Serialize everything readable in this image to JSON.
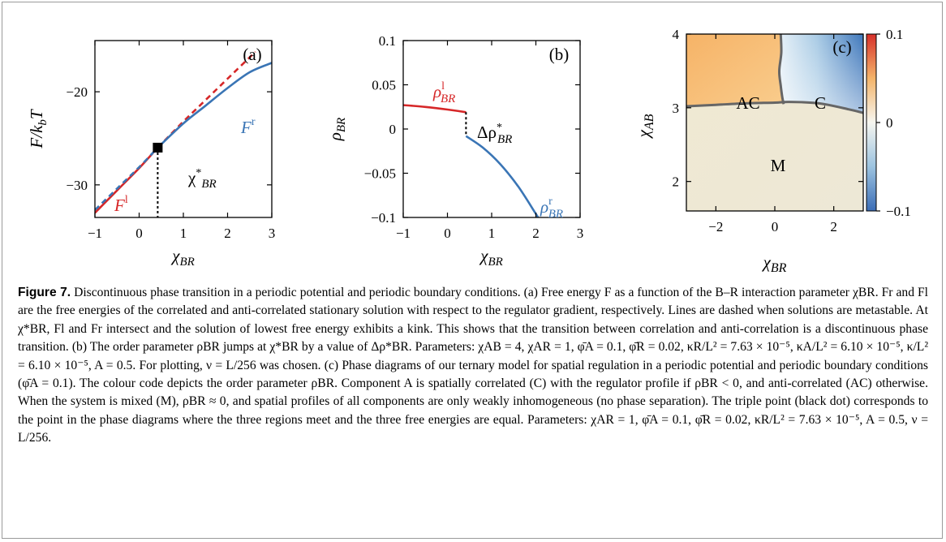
{
  "chart_data": [
    {
      "type": "line",
      "panel": "(a)",
      "xlabel": "χBR",
      "ylabel": "F/k_bT",
      "xlim": [
        -1,
        3
      ],
      "ylim": [
        -33.5,
        -14.5
      ],
      "xticks": [
        "−1",
        "0",
        "1",
        "2",
        "3"
      ],
      "yticks": [
        "−20",
        "−30"
      ],
      "series": [
        {
          "name": "F^l",
          "color": "#d62728",
          "x": [
            -1.0,
            -0.5,
            0.0,
            0.42,
            1.0,
            1.5,
            2.0,
            2.63
          ],
          "y": [
            -33.0,
            -30.6,
            -28.2,
            -26.0,
            -23.2,
            -20.9,
            -18.6,
            -15.7
          ]
        },
        {
          "name": "F^r",
          "color": "#3a75b5",
          "x": [
            -1.0,
            -0.5,
            0.0,
            0.42,
            1.0,
            1.5,
            2.0,
            2.5,
            3.0
          ],
          "y": [
            -32.7,
            -30.4,
            -28.1,
            -26.0,
            -23.4,
            -21.5,
            -19.6,
            -17.9,
            -16.9
          ]
        }
      ],
      "annotations": [
        "χ*BR",
        "(a)",
        "F^l",
        "F^r"
      ],
      "transition_point": {
        "x": 0.42,
        "y": -26.0
      }
    },
    {
      "type": "line",
      "panel": "(b)",
      "xlabel": "χBR",
      "ylabel": "ρBR",
      "xlim": [
        -1,
        3
      ],
      "ylim": [
        -0.1,
        0.1
      ],
      "xticks": [
        "−1",
        "0",
        "1",
        "2",
        "3"
      ],
      "yticks": [
        "0.1",
        "0.05",
        "0",
        "−0.05",
        "−0.1"
      ],
      "series": [
        {
          "name": "ρ^l_BR",
          "color": "#d62728",
          "x": [
            -1.0,
            -0.5,
            0.0,
            0.42
          ],
          "y": [
            0.027,
            0.025,
            0.022,
            0.019
          ]
        },
        {
          "name": "ρ^r_BR",
          "color": "#3a75b5",
          "x": [
            0.42,
            0.8,
            1.2,
            1.6,
            2.0,
            2.05
          ],
          "y": [
            -0.008,
            -0.021,
            -0.04,
            -0.065,
            -0.096,
            -0.1
          ]
        }
      ],
      "annotations": [
        "Δρ*BR",
        "(b)",
        "ρ^l_BR",
        "ρ^r_BR"
      ]
    },
    {
      "type": "heatmap",
      "panel": "(c)",
      "xlabel": "χBR",
      "ylabel": "χAB",
      "xlim": [
        -3,
        3
      ],
      "ylim": [
        1.6,
        4
      ],
      "xticks": [
        "−2",
        "0",
        "2"
      ],
      "yticks": [
        "4",
        "3",
        "2"
      ],
      "colorbar": {
        "min": -0.1,
        "max": 0.1,
        "ticks": [
          "0.1",
          "0",
          "−0.1"
        ],
        "colors": [
          "#3a6fb8",
          "#f7f7f0",
          "#d8332a"
        ]
      },
      "regions": [
        "AC",
        "C",
        "M"
      ],
      "boundaries": {
        "ac_c": {
          "x": [
            0.2,
            0.22,
            0.15,
            0.2,
            0.25,
            0.3
          ],
          "y": [
            4.0,
            3.75,
            3.5,
            3.3,
            3.15,
            3.05
          ]
        },
        "lower": {
          "x": [
            -3.0,
            -2.0,
            -1.0,
            0.0,
            0.5,
            1.5,
            2.5,
            3.0
          ],
          "y": [
            3.02,
            3.04,
            3.06,
            3.07,
            3.08,
            3.06,
            2.98,
            2.93
          ]
        }
      },
      "annotations": [
        "(c)"
      ]
    }
  ],
  "caption": {
    "figure_label": "Figure 7.",
    "text": " Discontinuous phase transition in a periodic potential and periodic boundary conditions. (a) Free energy F as a function of the B–R interaction parameter χBR. Fr and Fl are the free energies of the correlated and anti-correlated stationary solution with respect to the regulator gradient, respectively. Lines are dashed when solutions are metastable. At χ*BR, Fl and Fr intersect and the solution of lowest free energy exhibits a kink. This shows that the transition between correlation and anti-correlation is a discontinuous phase transition. (b) The order parameter ρBR jumps at χ*BR by a value of Δρ*BR. Parameters: χAB = 4, χAR = 1, φ̄A = 0.1, φ̄R = 0.02, κR/L² = 7.63 × 10⁻⁵, κA/L² = 6.10 × 10⁻⁵, κ/L² = 6.10 × 10⁻⁵, A = 0.5. For plotting, ν = L/256 was chosen. (c) Phase diagrams of our ternary model for spatial regulation in a periodic potential and periodic boundary conditions (φ̄A = 0.1). The colour code depicts the order parameter ρBR. Component A is spatially correlated (C) with the regulator profile if ρBR < 0, and anti-correlated (AC) otherwise. When the system is mixed (M), ρBR ≈ 0, and spatial profiles of all components are only weakly inhomogeneous (no phase separation). The triple point (black dot) corresponds to the point in the phase diagrams where the three regions meet and the three free energies are equal. Parameters: χAR = 1, φ̄A = 0.1, φ̄R = 0.02, κR/L² = 7.63 × 10⁻⁵, A = 0.5, ν = L/256."
  }
}
